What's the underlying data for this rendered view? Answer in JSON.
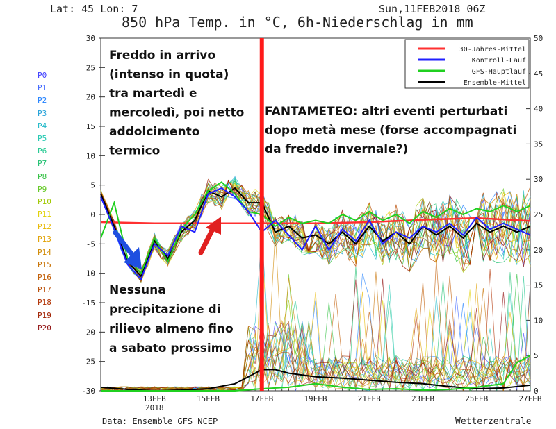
{
  "header": {
    "latlon": "Lat: 45 Lon: 7",
    "datetime": "Sun,11FEB2018 06Z",
    "title": "850 hPa Temp. in °C, 6h-Niederschlag in mm"
  },
  "footer": {
    "source": "Data: Ensemble GFS NCEP",
    "brand": "Wetterzentrale"
  },
  "members": [
    "P0",
    "P1",
    "P2",
    "P3",
    "P4",
    "P5",
    "P6",
    "P7",
    "P8",
    "P9",
    "P10",
    "P11",
    "P12",
    "P13",
    "P14",
    "P15",
    "P16",
    "P17",
    "P18",
    "P19",
    "P20"
  ],
  "member_colors": [
    "#3c3cff",
    "#3c64ff",
    "#2080ff",
    "#20a0d8",
    "#20b8c8",
    "#20c8b0",
    "#20c890",
    "#20c070",
    "#30c040",
    "#60c820",
    "#a0c800",
    "#e0d000",
    "#e8b800",
    "#e0a000",
    "#d08800",
    "#c87000",
    "#c05a00",
    "#b84a00",
    "#b03000",
    "#a02000",
    "#901010"
  ],
  "annotations": {
    "top_left": [
      "Freddo in arrivo",
      "(intenso in quota)",
      "tra martedì e",
      "mercoledì, poi netto",
      "addolcimento",
      "termico"
    ],
    "right": [
      "FANTAMETEO: altri eventi perturbati",
      "dopo metà mese (forse accompagnati",
      "da freddo invernale?)"
    ],
    "bottom_left": [
      "Nessuna",
      "precipitazione di",
      "rilievo almeno fino",
      "a sabato prossimo"
    ]
  },
  "chart_data": {
    "type": "line",
    "title": "850 hPa Temp. in °C, 6h-Niederschlag in mm",
    "x_range": [
      "11FEB2018 06Z",
      "27FEB2018 06Z"
    ],
    "x_ticks": [
      "13FEB",
      "15FEB",
      "17FEB",
      "19FEB",
      "21FEB",
      "23FEB",
      "25FEB",
      "27FEB"
    ],
    "x_year_label": "2018",
    "ylim_left": [
      -30,
      30
    ],
    "yticks_left": [
      30,
      25,
      20,
      15,
      10,
      5,
      0,
      -5,
      -10,
      -15,
      -20,
      -25,
      -30
    ],
    "ylim_right": [
      0,
      50
    ],
    "yticks_right": [
      50,
      45,
      40,
      35,
      30,
      25,
      20,
      15,
      10,
      5,
      0
    ],
    "legend": [
      {
        "name": "30-Jahres-Mittel",
        "color": "#ff3030"
      },
      {
        "name": "Kontroll-Lauf",
        "color": "#2020ff"
      },
      {
        "name": "GFS-Hauptlauf",
        "color": "#20d020"
      },
      {
        "name": "Ensemble-Mittel",
        "color": "#000000"
      }
    ],
    "legend_position": "top-right",
    "marker_date": "17FEB",
    "marker_color": "#ff1a1a",
    "series": [
      {
        "name": "30-Jahres-Mittel",
        "axis": "temp",
        "x": [
          0,
          2,
          4,
          6,
          8,
          10,
          12,
          14,
          16
        ],
        "values": [
          -1.3,
          -1.5,
          -1.5,
          -1.5,
          -1.5,
          -1.3,
          -0.9,
          -0.6,
          -1.1
        ]
      },
      {
        "name": "Ensemble-Mittel",
        "axis": "temp",
        "x": [
          0,
          0.5,
          1,
          1.5,
          2,
          2.5,
          3,
          3.5,
          4,
          4.5,
          5,
          5.5,
          6,
          6.5,
          7,
          7.5,
          8,
          8.5,
          9,
          9.5,
          10,
          10.5,
          11,
          11.5,
          12,
          12.5,
          13,
          13.5,
          14,
          14.5,
          15,
          15.5,
          16
        ],
        "values": [
          3.5,
          -2,
          -8,
          -10.5,
          -4.5,
          -7.5,
          -3,
          -1,
          4,
          3,
          4.5,
          2,
          2,
          -3,
          -2,
          -4,
          -3.5,
          -5,
          -3,
          -5,
          -2,
          -4.5,
          -3,
          -5,
          -2,
          -3.5,
          -2,
          -4,
          -1.5,
          -3,
          -2,
          -3,
          -2
        ]
      },
      {
        "name": "GFS-Hauptlauf",
        "axis": "temp",
        "x": [
          0,
          0.5,
          1,
          1.5,
          2,
          2.5,
          3,
          3.5,
          4,
          4.5,
          5,
          5.5,
          6,
          6.5,
          7,
          7.5,
          8,
          8.5,
          9,
          9.5,
          10,
          10.5,
          11,
          11.5,
          12,
          12.5,
          13,
          13.5,
          14,
          14.5,
          15,
          15.5,
          16
        ],
        "values": [
          -4,
          2,
          -7.5,
          -10,
          -4,
          -8,
          -2.5,
          0,
          4,
          5.5,
          3.5,
          0.5,
          0,
          -2,
          -0.5,
          -1.5,
          -1,
          -1.5,
          0,
          -1,
          0.5,
          -1,
          0,
          -1.5,
          0.5,
          -0.5,
          1,
          0,
          1,
          0.5,
          1.5,
          0.5,
          1.5
        ]
      },
      {
        "name": "Kontroll-Lauf",
        "axis": "temp",
        "x": [
          0,
          0.5,
          1,
          1.5,
          2,
          2.5,
          3,
          3.5,
          4,
          4.5,
          5,
          5.5,
          6,
          6.5,
          7,
          7.5,
          8,
          8.5,
          9,
          9.5,
          10,
          10.5,
          11,
          11.5,
          12,
          12.5,
          13,
          13.5,
          14,
          14.5,
          15,
          15.5,
          16
        ],
        "values": [
          3,
          -2.5,
          -8.5,
          -11,
          -5,
          -7,
          -2,
          -3,
          3.5,
          4.5,
          3,
          0.5,
          -3,
          -1,
          -3.5,
          -6,
          -2,
          -6,
          -2.5,
          -4.5,
          -1,
          -5,
          -3,
          -4,
          -2,
          -3,
          -1.5,
          -3.5,
          -0.5,
          -2.5,
          -1.5,
          -2.5,
          -3.5
        ]
      },
      {
        "name": "Ensemble-Mittel",
        "axis": "precip",
        "x": [
          0,
          1,
          2,
          3,
          4,
          5,
          5.5,
          6,
          6.5,
          7,
          8,
          9,
          10,
          11,
          12,
          13,
          14,
          15,
          16
        ],
        "values": [
          0.5,
          0.2,
          0,
          0.1,
          0.3,
          1,
          2,
          3,
          3,
          2.5,
          2,
          1.8,
          1.5,
          1.2,
          1,
          0.6,
          0.3,
          0.4,
          0.8
        ]
      },
      {
        "name": "GFS-Hauptlauf",
        "axis": "precip",
        "x": [
          0,
          4,
          5,
          6,
          7,
          8,
          9,
          10,
          11,
          12,
          13,
          14,
          15,
          15.5,
          16
        ],
        "values": [
          0,
          0,
          0,
          0.3,
          0.5,
          1,
          0.5,
          0.2,
          0.3,
          0.1,
          0.2,
          0.5,
          1,
          4,
          5
        ]
      }
    ]
  }
}
